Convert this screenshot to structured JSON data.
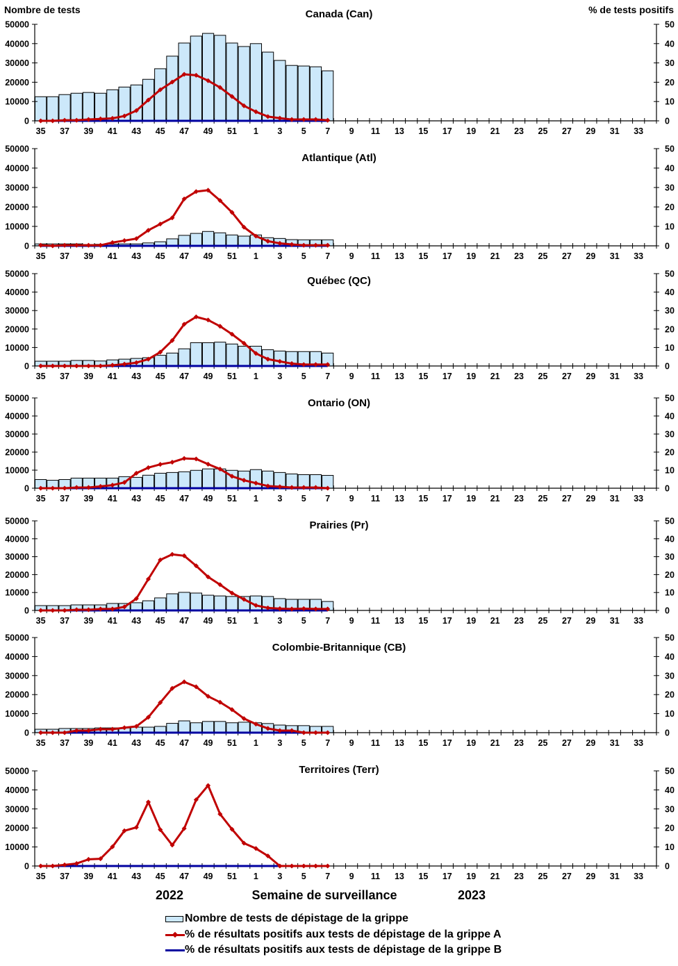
{
  "chart_data": {
    "type": "bar+line",
    "y_left_label": "Nombre de tests",
    "y_right_label": "% de tests positifs",
    "xlabel": "Semaine de surveillance",
    "year_labels": [
      "2022",
      "2023"
    ],
    "ylim_left": [
      0,
      50000
    ],
    "ylim_right": [
      0,
      50
    ],
    "y_left_ticks": [
      "0",
      "10000",
      "20000",
      "30000",
      "40000",
      "50000"
    ],
    "y_right_ticks": [
      "0",
      "10",
      "20",
      "30",
      "40",
      "50"
    ],
    "weeks": [
      "35",
      "36",
      "37",
      "38",
      "39",
      "40",
      "41",
      "42",
      "43",
      "44",
      "45",
      "46",
      "47",
      "48",
      "49",
      "50",
      "51",
      "52",
      "1",
      "2",
      "3",
      "4",
      "5",
      "6",
      "7",
      "8",
      "9",
      "10",
      "11",
      "12",
      "13",
      "14",
      "15",
      "16",
      "17",
      "18",
      "19",
      "20",
      "21",
      "22",
      "23",
      "24",
      "25",
      "26",
      "27",
      "28",
      "29",
      "30",
      "31",
      "32",
      "33",
      "34"
    ],
    "x_tick_labels": [
      "35",
      "37",
      "39",
      "41",
      "43",
      "45",
      "47",
      "49",
      "51",
      "1",
      "3",
      "5",
      "7",
      "9",
      "11",
      "13",
      "15",
      "17",
      "19",
      "21",
      "23",
      "25",
      "27",
      "29",
      "31",
      "33"
    ],
    "colors": {
      "bars_fill": "#cce8fa",
      "bars_stroke": "#000000",
      "flu_a": "#c00000",
      "flu_b": "#0000a0"
    },
    "legend": {
      "bars": "Nombre de tests de dépistage de la grippe",
      "flu_a": "% de résultats positifs aux tests de dépistage de la grippe A",
      "flu_b": "% de résultats positifs aux tests de dépistage de la grippe B"
    },
    "panels": [
      {
        "title": "Canada (Can)",
        "tests": [
          12500,
          12500,
          13600,
          14300,
          14700,
          14300,
          16100,
          17500,
          18600,
          21500,
          27000,
          33500,
          40300,
          43900,
          45300,
          44300,
          40300,
          38500,
          40000,
          35600,
          31300,
          28700,
          28400,
          28000,
          25900
        ],
        "pct_a": [
          0,
          0,
          0.3,
          0.3,
          0.7,
          1,
          1.3,
          2.5,
          5.3,
          10.8,
          16.1,
          20.1,
          24.1,
          23.6,
          20.8,
          17.3,
          12.6,
          7.8,
          4.7,
          2.2,
          1.4,
          0.7,
          0.7,
          0.7,
          0.3
        ],
        "pct_b": [
          0,
          0,
          0,
          0,
          0,
          0,
          0,
          0,
          0,
          0,
          0,
          0,
          0,
          0,
          0,
          0,
          0,
          0,
          0,
          0,
          0,
          0,
          0,
          0,
          0
        ]
      },
      {
        "title": "Atlantique (Atl)",
        "tests": [
          1000,
          1000,
          1000,
          1000,
          700,
          800,
          900,
          1000,
          1000,
          1500,
          2100,
          3600,
          5400,
          6400,
          7400,
          6700,
          5600,
          5000,
          5600,
          4200,
          3800,
          3200,
          3100,
          3100,
          3100
        ],
        "pct_a": [
          0.3,
          0,
          0.3,
          0.3,
          0.3,
          0.3,
          1.7,
          2.7,
          3.7,
          8,
          11.2,
          14.4,
          24.1,
          27.9,
          28.6,
          23.3,
          17.2,
          9.6,
          5,
          2.4,
          1.3,
          0.7,
          0.3,
          0.3,
          0.3
        ],
        "pct_b": [
          0,
          0,
          0,
          0,
          0,
          0,
          0,
          0,
          0,
          0,
          0,
          0,
          0,
          0,
          0,
          0,
          0,
          0,
          0,
          0,
          0,
          0,
          0,
          0,
          0
        ]
      },
      {
        "title": "Québec (QC)",
        "tests": [
          2600,
          2600,
          2600,
          3000,
          3000,
          2700,
          3300,
          3700,
          4100,
          4500,
          5800,
          7000,
          9300,
          12600,
          12600,
          12900,
          11900,
          10700,
          10700,
          8800,
          8100,
          7800,
          7800,
          7800,
          7000
        ],
        "pct_a": [
          0,
          0,
          0,
          0,
          0,
          0,
          0.4,
          1,
          1.8,
          3.7,
          7.5,
          13.8,
          22.6,
          26.6,
          24.9,
          21.5,
          17.2,
          12.3,
          6.8,
          3.7,
          2.5,
          1.3,
          0.8,
          0.8,
          0.8
        ],
        "pct_b": [
          0,
          0,
          0,
          0,
          0,
          0,
          0,
          0,
          0,
          0,
          0,
          0,
          0,
          0,
          0,
          0,
          0,
          0,
          0,
          0,
          0,
          0,
          0,
          0,
          0
        ]
      },
      {
        "title": "Ontario (ON)",
        "tests": [
          4800,
          4400,
          4800,
          5600,
          5600,
          5600,
          5600,
          6400,
          6000,
          7200,
          8300,
          8700,
          9100,
          9900,
          10700,
          10700,
          9900,
          9500,
          10300,
          9500,
          8700,
          7900,
          7500,
          7500,
          7100
        ],
        "pct_a": [
          0,
          0,
          0,
          0.4,
          0.4,
          1,
          1.7,
          3.2,
          8.3,
          11.4,
          13.2,
          14.4,
          16.5,
          16.2,
          13.3,
          10.6,
          6.6,
          4.4,
          2.8,
          1.2,
          0.8,
          0.4,
          0.4,
          0.4,
          0
        ],
        "pct_b": [
          0,
          0,
          0,
          0,
          0,
          0,
          0,
          0,
          0,
          0,
          0,
          0,
          0,
          0,
          0,
          0,
          0,
          0,
          0,
          0,
          0,
          0,
          0,
          0,
          0
        ]
      },
      {
        "title": "Prairies (Pr)",
        "tests": [
          2700,
          2700,
          2700,
          3100,
          3100,
          3100,
          3900,
          3900,
          4300,
          5400,
          7000,
          9300,
          10100,
          9700,
          8500,
          8100,
          7800,
          7800,
          8100,
          7800,
          6600,
          6200,
          6200,
          6200,
          5000
        ],
        "pct_a": [
          0,
          0,
          0,
          0.4,
          0.4,
          0.8,
          0.8,
          2,
          6.6,
          17.5,
          28.2,
          31.3,
          30.5,
          24.9,
          18.7,
          14.4,
          9.7,
          6.2,
          2.8,
          1.4,
          1,
          0.8,
          1,
          0.8,
          0.8
        ],
        "pct_b": [
          0,
          0,
          0,
          0,
          0,
          0,
          0,
          0,
          0,
          0,
          0,
          0,
          0,
          0,
          0,
          0,
          0,
          0,
          0,
          0,
          0,
          0,
          0,
          0,
          0
        ]
      },
      {
        "title": "Colombie-Britannique (CB)",
        "tests": [
          1800,
          1800,
          2200,
          2200,
          2200,
          2500,
          2500,
          2500,
          2900,
          2900,
          3300,
          4900,
          6200,
          5200,
          5900,
          5900,
          5200,
          5500,
          5200,
          4800,
          4000,
          3700,
          3700,
          3300,
          3300
        ],
        "pct_a": [
          0,
          0,
          0,
          1.1,
          1.1,
          1.8,
          1.8,
          2.6,
          3.3,
          8.1,
          15.8,
          23.3,
          26.7,
          24.1,
          19.1,
          16,
          12.1,
          7.4,
          4.5,
          2.2,
          1.1,
          1.1,
          0,
          0,
          0
        ],
        "pct_b": [
          0,
          0,
          0,
          0,
          0,
          0,
          0,
          0,
          0,
          0,
          0,
          0,
          0,
          0,
          0,
          0,
          0,
          0,
          0,
          0,
          0,
          0,
          0,
          0,
          0
        ]
      },
      {
        "title": "Territoires (Terr)",
        "tests": [
          0,
          0,
          0,
          0,
          0,
          0,
          0,
          0,
          0,
          0,
          0,
          0,
          0,
          0,
          0,
          0,
          0,
          0,
          0,
          0,
          0,
          0,
          0,
          0,
          0
        ],
        "pct_a": [
          0,
          0,
          0.6,
          1.3,
          3.5,
          3.8,
          10.1,
          18.5,
          20.3,
          33.6,
          19.1,
          11,
          19.7,
          34.8,
          42.3,
          27.3,
          19.3,
          12,
          9.2,
          5.3,
          0,
          0,
          0,
          0,
          0
        ],
        "pct_b": [
          0,
          0,
          0,
          0,
          0,
          0,
          0,
          0,
          0,
          0,
          0,
          0,
          0,
          0,
          0,
          0,
          0,
          0,
          0,
          0,
          0,
          0,
          0,
          0,
          0
        ]
      }
    ]
  }
}
